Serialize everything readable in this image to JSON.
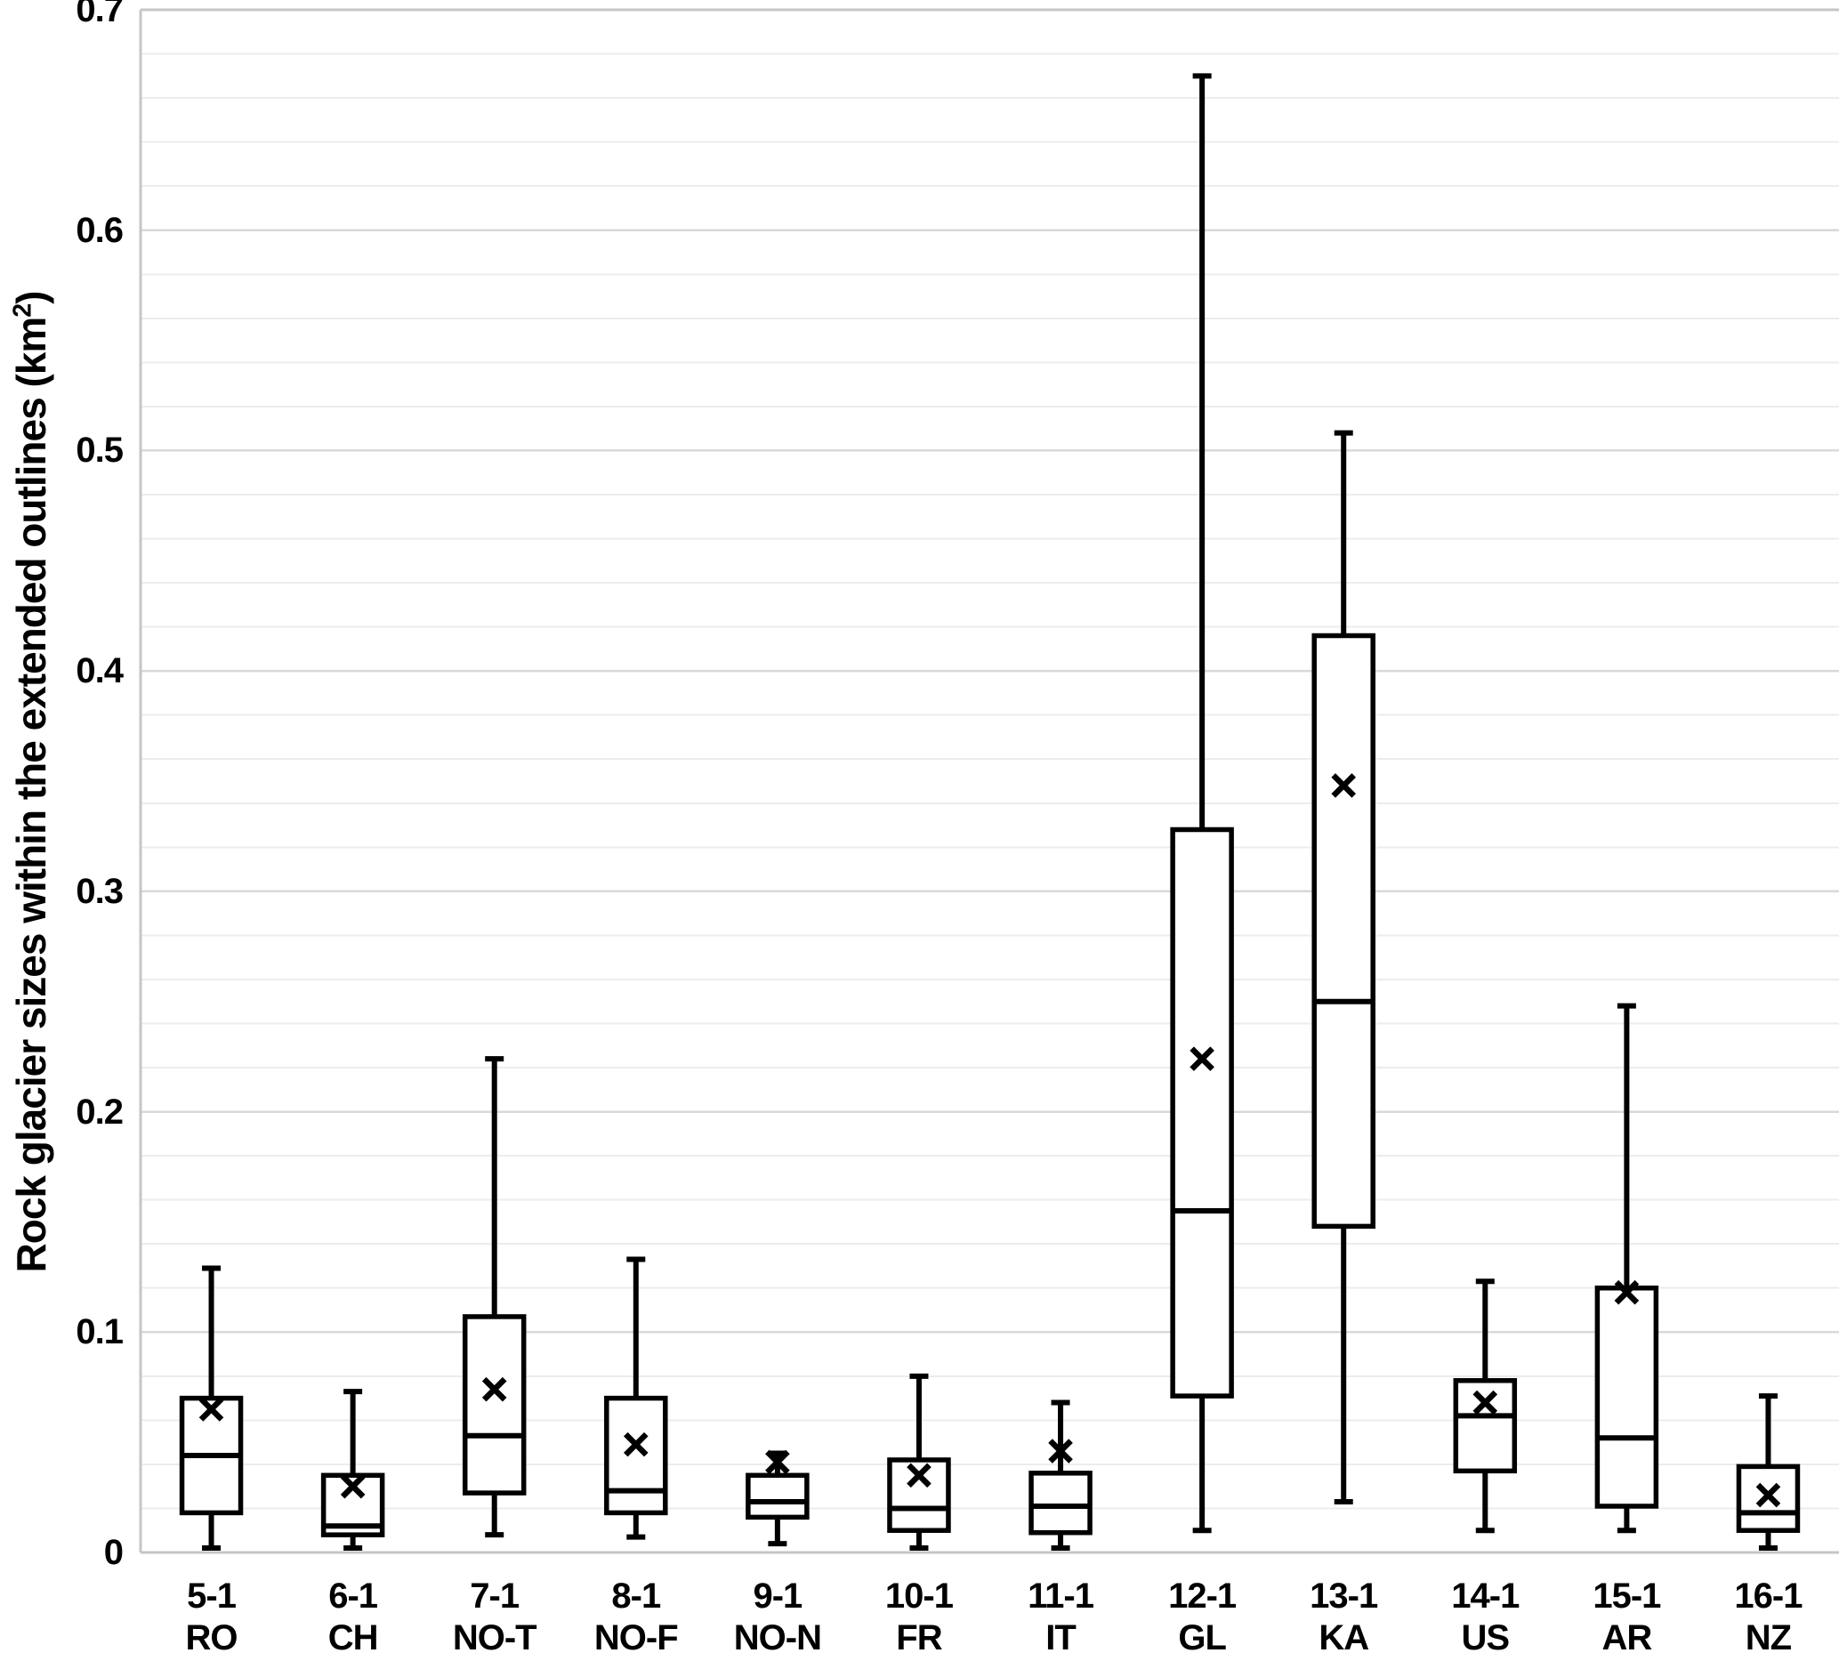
{
  "colors": {
    "background": "#ffffff",
    "box_stroke": "#000000",
    "box_fill": "#ffffff",
    "grid_minor": "#ececec",
    "grid_major": "#d9d9d9",
    "axis_border": "#c6c6c6",
    "text": "#000000"
  },
  "y_axis": {
    "title_prefix": "Rock glacier sizes within the extended outlines (km",
    "title_sup": "2",
    "title_suffix": ")",
    "tick_labels": [
      "0",
      "0.1",
      "0.2",
      "0.3",
      "0.4",
      "0.5",
      "0.6",
      "0.7"
    ]
  },
  "chart_data": {
    "type": "box",
    "title": "",
    "xlabel": "",
    "ylabel": "Rock glacier sizes within the extended outlines (km²)",
    "ylim": [
      0,
      0.7
    ],
    "y_major_step": 0.1,
    "y_minor_step": 0.02,
    "grid": "horizontal",
    "legend": "none",
    "whisker_caps": true,
    "mean_marker": "x",
    "categories": [
      "5-1 RO",
      "6-1 CH",
      "7-1 NO-T",
      "8-1 NO-F",
      "9-1 NO-N",
      "10-1 FR",
      "11-1 IT",
      "12-1 GL",
      "13-1 KA",
      "14-1 US",
      "15-1 AR",
      "16-1 NZ"
    ],
    "boxes": [
      {
        "code": "5-1",
        "region": "RO",
        "min": 0.002,
        "q1": 0.018,
        "median": 0.044,
        "q3": 0.07,
        "max": 0.129,
        "mean": 0.065
      },
      {
        "code": "6-1",
        "region": "CH",
        "min": 0.002,
        "q1": 0.008,
        "median": 0.012,
        "q3": 0.035,
        "max": 0.073,
        "mean": 0.03
      },
      {
        "code": "7-1",
        "region": "NO-T",
        "min": 0.008,
        "q1": 0.027,
        "median": 0.053,
        "q3": 0.107,
        "max": 0.224,
        "mean": 0.074
      },
      {
        "code": "8-1",
        "region": "NO-F",
        "min": 0.007,
        "q1": 0.018,
        "median": 0.028,
        "q3": 0.07,
        "max": 0.133,
        "mean": 0.049
      },
      {
        "code": "9-1",
        "region": "NO-N",
        "min": 0.004,
        "q1": 0.016,
        "median": 0.023,
        "q3": 0.035,
        "max": 0.045,
        "mean": 0.041
      },
      {
        "code": "10-1",
        "region": "FR",
        "min": 0.002,
        "q1": 0.01,
        "median": 0.02,
        "q3": 0.042,
        "max": 0.08,
        "mean": 0.035
      },
      {
        "code": "11-1",
        "region": "IT",
        "min": 0.002,
        "q1": 0.009,
        "median": 0.021,
        "q3": 0.036,
        "max": 0.068,
        "mean": 0.046
      },
      {
        "code": "12-1",
        "region": "GL",
        "min": 0.01,
        "q1": 0.071,
        "median": 0.155,
        "q3": 0.328,
        "max": 0.67,
        "mean": 0.224
      },
      {
        "code": "13-1",
        "region": "KA",
        "min": 0.023,
        "q1": 0.148,
        "median": 0.25,
        "q3": 0.416,
        "max": 0.508,
        "mean": 0.348
      },
      {
        "code": "14-1",
        "region": "US",
        "min": 0.01,
        "q1": 0.037,
        "median": 0.062,
        "q3": 0.078,
        "max": 0.123,
        "mean": 0.068
      },
      {
        "code": "15-1",
        "region": "AR",
        "min": 0.01,
        "q1": 0.021,
        "median": 0.052,
        "q3": 0.12,
        "max": 0.248,
        "mean": 0.118
      },
      {
        "code": "16-1",
        "region": "NZ",
        "min": 0.002,
        "q1": 0.01,
        "median": 0.018,
        "q3": 0.039,
        "max": 0.071,
        "mean": 0.026
      }
    ]
  }
}
